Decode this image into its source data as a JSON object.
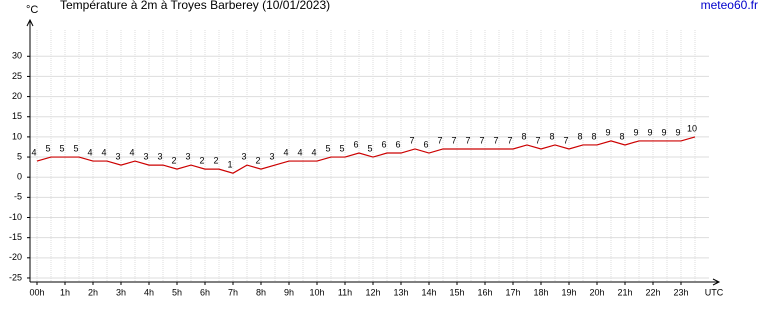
{
  "chart_data": {
    "type": "line",
    "title": "Température à 2m à Troyes Barberey (10/01/2023)",
    "y_label": "°C",
    "x_label": "UTC",
    "source": "meteo60.fr",
    "categories": [
      "00h",
      null,
      "1h",
      null,
      "2h",
      null,
      "3h",
      null,
      "4h",
      null,
      "5h",
      null,
      "6h",
      null,
      "7h",
      null,
      "8h",
      null,
      "9h",
      null,
      "10h",
      null,
      "11h",
      null,
      "12h",
      null,
      "13h",
      null,
      "14h",
      null,
      "15h",
      null,
      "16h",
      null,
      "17h",
      null,
      "18h",
      null,
      "19h",
      null,
      "20h",
      null,
      "21h",
      null,
      "22h",
      null,
      "23h",
      null
    ],
    "series": [
      {
        "name": "Température",
        "color": "#cc0000",
        "values": [
          4,
          5,
          5,
          5,
          4,
          4,
          3,
          4,
          3,
          3,
          2,
          3,
          2,
          2,
          1,
          3,
          2,
          3,
          4,
          4,
          4,
          5,
          5,
          6,
          5,
          6,
          6,
          7,
          6,
          7,
          7,
          7,
          7,
          7,
          7,
          8,
          7,
          8,
          7,
          8,
          8,
          9,
          8,
          9,
          9,
          9,
          9,
          10
        ]
      }
    ],
    "ylim": [
      -26,
      39
    ],
    "yticks": [
      -25,
      -20,
      -15,
      -10,
      -5,
      0,
      5,
      10,
      15,
      20,
      25,
      30
    ],
    "grid": true
  }
}
